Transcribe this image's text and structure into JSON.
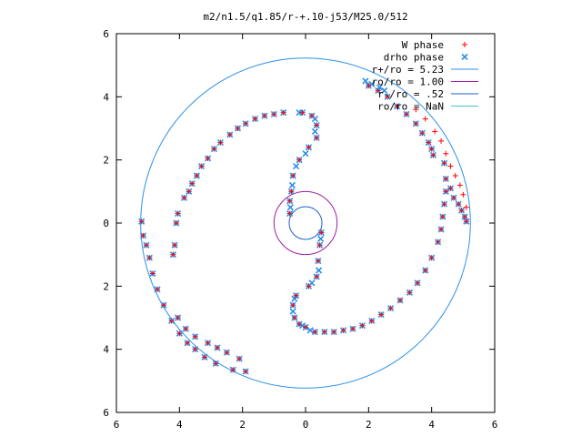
{
  "chart_data": {
    "type": "scatter",
    "title": "m2/n1.5/q1.85/r-+.10-j53/M25.0/512",
    "xlabel": "",
    "ylabel": "",
    "xlim": [
      -6,
      6
    ],
    "ylim": [
      -6,
      6
    ],
    "x_ticks": [
      -6,
      -4,
      -2,
      0,
      2,
      4,
      6
    ],
    "y_ticks": [
      -6,
      -4,
      -2,
      0,
      2,
      4,
      6
    ],
    "x_tick_labels": [
      "6",
      "4",
      "2",
      "0",
      "2",
      "4",
      "6"
    ],
    "y_tick_labels": [
      "6",
      "4",
      "2",
      "0",
      "2",
      "4",
      "6"
    ],
    "grid": false,
    "legend_position": "top-right",
    "series": [
      {
        "name": "W phase",
        "marker": "plus",
        "color": "#ff0000",
        "points": [
          [
            -5.2,
            0.05
          ],
          [
            -5.15,
            -0.4
          ],
          [
            -5.05,
            -0.7
          ],
          [
            -4.95,
            -1.1
          ],
          [
            -4.85,
            -1.6
          ],
          [
            -4.7,
            -2.1
          ],
          [
            -4.5,
            -2.6
          ],
          [
            -4.25,
            -3.1
          ],
          [
            -4.0,
            -3.5
          ],
          [
            -3.75,
            -3.8
          ],
          [
            -3.5,
            -4.0
          ],
          [
            -3.2,
            -4.25
          ],
          [
            -2.85,
            -4.45
          ],
          [
            -2.3,
            -4.65
          ],
          [
            -1.9,
            -4.7
          ],
          [
            -4.05,
            -3.0
          ],
          [
            -3.8,
            -3.35
          ],
          [
            -3.5,
            -3.6
          ],
          [
            -3.1,
            -3.8
          ],
          [
            -2.8,
            -3.95
          ],
          [
            -2.5,
            -4.1
          ],
          [
            -2.1,
            -4.3
          ],
          [
            -4.2,
            -1.0
          ],
          [
            -4.15,
            -0.7
          ],
          [
            -4.1,
            0.0
          ],
          [
            -4.05,
            0.3
          ],
          [
            -3.85,
            0.8
          ],
          [
            -3.7,
            1.0
          ],
          [
            -3.6,
            1.25
          ],
          [
            -3.45,
            1.5
          ],
          [
            -3.3,
            1.8
          ],
          [
            -3.1,
            2.05
          ],
          [
            -2.9,
            2.35
          ],
          [
            -2.7,
            2.55
          ],
          [
            -2.4,
            2.8
          ],
          [
            -2.15,
            3.0
          ],
          [
            -1.9,
            3.15
          ],
          [
            -1.6,
            3.3
          ],
          [
            -1.3,
            3.4
          ],
          [
            -1.0,
            3.45
          ],
          [
            -0.7,
            3.5
          ],
          [
            -0.1,
            3.5
          ],
          [
            0.2,
            3.4
          ],
          [
            0.35,
            3.1
          ],
          [
            0.35,
            2.7
          ],
          [
            0.1,
            2.4
          ],
          [
            -0.2,
            2.0
          ],
          [
            -0.4,
            1.5
          ],
          [
            -0.45,
            1.0
          ],
          [
            -0.5,
            0.7
          ],
          [
            -0.5,
            0.3
          ],
          [
            0.5,
            -0.3
          ],
          [
            0.45,
            -0.7
          ],
          [
            0.4,
            -1.2
          ],
          [
            0.35,
            -1.7
          ],
          [
            0.1,
            -2.0
          ],
          [
            -0.3,
            -2.3
          ],
          [
            -0.4,
            -2.6
          ],
          [
            -0.35,
            -3.0
          ],
          [
            -0.2,
            -3.2
          ],
          [
            0.0,
            -3.3
          ],
          [
            0.3,
            -3.45
          ],
          [
            0.6,
            -3.45
          ],
          [
            0.9,
            -3.45
          ],
          [
            1.2,
            -3.4
          ],
          [
            1.5,
            -3.35
          ],
          [
            1.8,
            -3.25
          ],
          [
            2.1,
            -3.1
          ],
          [
            2.4,
            -2.9
          ],
          [
            2.7,
            -2.7
          ],
          [
            3.0,
            -2.45
          ],
          [
            3.3,
            -2.2
          ],
          [
            3.55,
            -1.9
          ],
          [
            3.8,
            -1.5
          ],
          [
            4.0,
            -1.1
          ],
          [
            4.2,
            -0.6
          ],
          [
            4.3,
            -0.2
          ],
          [
            4.35,
            0.2
          ],
          [
            4.4,
            0.6
          ],
          [
            4.45,
            1.0
          ],
          [
            4.45,
            1.4
          ],
          [
            4.4,
            1.9
          ],
          [
            4.6,
            1.1
          ],
          [
            4.7,
            0.8
          ],
          [
            4.85,
            0.6
          ],
          [
            4.95,
            0.4
          ],
          [
            5.05,
            0.2
          ],
          [
            5.1,
            0.05
          ],
          [
            2.0,
            4.35
          ],
          [
            2.3,
            4.2
          ],
          [
            2.6,
            4.0
          ],
          [
            2.9,
            3.7
          ],
          [
            3.2,
            3.45
          ],
          [
            3.5,
            3.15
          ],
          [
            3.7,
            2.85
          ],
          [
            3.9,
            2.55
          ],
          [
            4.0,
            2.35
          ],
          [
            4.05,
            2.15
          ],
          [
            3.5,
            3.6
          ],
          [
            3.8,
            3.3
          ],
          [
            4.1,
            2.9
          ],
          [
            4.3,
            2.6
          ],
          [
            4.45,
            2.2
          ],
          [
            4.6,
            1.8
          ],
          [
            4.75,
            1.5
          ],
          [
            4.9,
            1.2
          ],
          [
            5.0,
            0.9
          ],
          [
            5.1,
            0.5
          ]
        ]
      },
      {
        "name": "drho phase",
        "marker": "cross",
        "color": "#2b8fe8",
        "points": [
          [
            -5.2,
            0.05
          ],
          [
            -5.15,
            -0.4
          ],
          [
            -5.05,
            -0.7
          ],
          [
            -4.95,
            -1.1
          ],
          [
            -4.85,
            -1.6
          ],
          [
            -4.7,
            -2.1
          ],
          [
            -4.5,
            -2.6
          ],
          [
            -4.25,
            -3.1
          ],
          [
            -4.0,
            -3.5
          ],
          [
            -3.75,
            -3.8
          ],
          [
            -3.5,
            -4.0
          ],
          [
            -3.2,
            -4.25
          ],
          [
            -2.85,
            -4.45
          ],
          [
            -2.3,
            -4.65
          ],
          [
            -1.9,
            -4.7
          ],
          [
            -4.05,
            -3.0
          ],
          [
            -3.8,
            -3.35
          ],
          [
            -3.5,
            -3.6
          ],
          [
            -3.1,
            -3.8
          ],
          [
            -2.8,
            -3.95
          ],
          [
            -2.5,
            -4.1
          ],
          [
            -2.1,
            -4.3
          ],
          [
            -4.2,
            -1.0
          ],
          [
            -4.15,
            -0.7
          ],
          [
            -4.1,
            0.0
          ],
          [
            -4.05,
            0.3
          ],
          [
            -3.85,
            0.8
          ],
          [
            -3.7,
            1.0
          ],
          [
            -3.6,
            1.25
          ],
          [
            -3.45,
            1.5
          ],
          [
            -3.3,
            1.8
          ],
          [
            -3.1,
            2.05
          ],
          [
            -2.9,
            2.35
          ],
          [
            -2.7,
            2.55
          ],
          [
            -2.4,
            2.8
          ],
          [
            -2.15,
            3.0
          ],
          [
            -1.9,
            3.15
          ],
          [
            -1.6,
            3.3
          ],
          [
            -1.3,
            3.4
          ],
          [
            -1.0,
            3.45
          ],
          [
            -0.7,
            3.5
          ],
          [
            -0.1,
            3.5
          ],
          [
            0.2,
            3.4
          ],
          [
            0.35,
            3.1
          ],
          [
            0.35,
            2.7
          ],
          [
            0.1,
            2.4
          ],
          [
            -0.2,
            2.0
          ],
          [
            -0.4,
            1.5
          ],
          [
            -0.45,
            1.0
          ],
          [
            -0.5,
            0.7
          ],
          [
            -0.5,
            0.3
          ],
          [
            0.5,
            -0.3
          ],
          [
            0.45,
            -0.7
          ],
          [
            0.4,
            -1.2
          ],
          [
            0.35,
            -1.7
          ],
          [
            0.1,
            -2.0
          ],
          [
            -0.3,
            -2.3
          ],
          [
            -0.4,
            -2.6
          ],
          [
            -0.35,
            -3.0
          ],
          [
            -0.2,
            -3.2
          ],
          [
            0.0,
            -3.3
          ],
          [
            0.3,
            -3.45
          ],
          [
            0.6,
            -3.45
          ],
          [
            0.9,
            -3.45
          ],
          [
            1.2,
            -3.4
          ],
          [
            1.5,
            -3.35
          ],
          [
            1.8,
            -3.25
          ],
          [
            2.1,
            -3.1
          ],
          [
            2.4,
            -2.9
          ],
          [
            2.7,
            -2.7
          ],
          [
            3.0,
            -2.45
          ],
          [
            3.3,
            -2.2
          ],
          [
            3.55,
            -1.9
          ],
          [
            3.8,
            -1.5
          ],
          [
            4.0,
            -1.1
          ],
          [
            4.2,
            -0.6
          ],
          [
            4.3,
            -0.2
          ],
          [
            4.35,
            0.2
          ],
          [
            4.4,
            0.6
          ],
          [
            4.45,
            1.0
          ],
          [
            4.45,
            1.4
          ],
          [
            4.4,
            1.9
          ],
          [
            4.6,
            1.1
          ],
          [
            4.7,
            0.8
          ],
          [
            4.85,
            0.6
          ],
          [
            4.95,
            0.4
          ],
          [
            5.05,
            0.2
          ],
          [
            5.1,
            0.05
          ],
          [
            2.0,
            4.35
          ],
          [
            2.3,
            4.2
          ],
          [
            2.6,
            4.0
          ],
          [
            2.9,
            3.7
          ],
          [
            3.2,
            3.45
          ],
          [
            3.5,
            3.15
          ],
          [
            3.7,
            2.85
          ],
          [
            3.9,
            2.55
          ],
          [
            4.0,
            2.35
          ],
          [
            4.05,
            2.15
          ],
          [
            1.9,
            4.5
          ],
          [
            2.1,
            4.4
          ],
          [
            2.35,
            4.3
          ],
          [
            2.5,
            4.2
          ],
          [
            -0.2,
            3.5
          ],
          [
            0.3,
            3.3
          ],
          [
            0.3,
            2.9
          ],
          [
            0.0,
            2.2
          ],
          [
            -0.3,
            1.8
          ],
          [
            -0.42,
            1.2
          ],
          [
            -0.48,
            0.5
          ],
          [
            0.48,
            -0.5
          ],
          [
            0.42,
            -1.5
          ],
          [
            0.2,
            -1.9
          ],
          [
            -0.35,
            -2.4
          ],
          [
            -0.4,
            -2.8
          ],
          [
            -0.1,
            -3.25
          ],
          [
            0.15,
            -3.4
          ]
        ]
      }
    ],
    "circles": [
      {
        "name": "r+/ro = 5.23",
        "r": 5.23,
        "color": "#2b8fe8"
      },
      {
        "name": "ro/ro = 1.00",
        "r": 1.0,
        "color": "#a020a0"
      },
      {
        "name": "r-/ro = .52",
        "r": 0.52,
        "color": "#1f5fc8"
      },
      {
        "name": "ro/ro = NaN",
        "r": null,
        "color": "#40c8d0"
      }
    ]
  }
}
